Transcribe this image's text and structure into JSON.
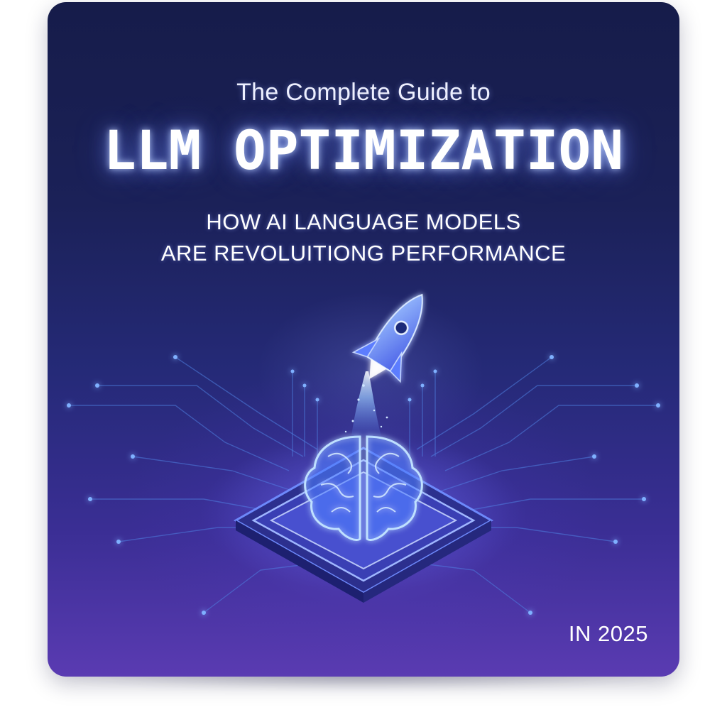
{
  "cover": {
    "intro": "The Complete Guide to",
    "title": "LLM OPTIMIZATION",
    "subtitle_line1": "HOW AI LANGUAGE MODELS",
    "subtitle_line2": "ARE REVOLUITIONG PERFORMANCE",
    "year": "IN 2025"
  },
  "illustration": {
    "icons": [
      "rocket-icon",
      "brain-circuit-icon",
      "chip-platform-icon"
    ]
  },
  "colors": {
    "background_top": "#161c4a",
    "background_bottom": "#5a3bb2",
    "glow": "#7aa8ff",
    "text": "#ffffff"
  }
}
